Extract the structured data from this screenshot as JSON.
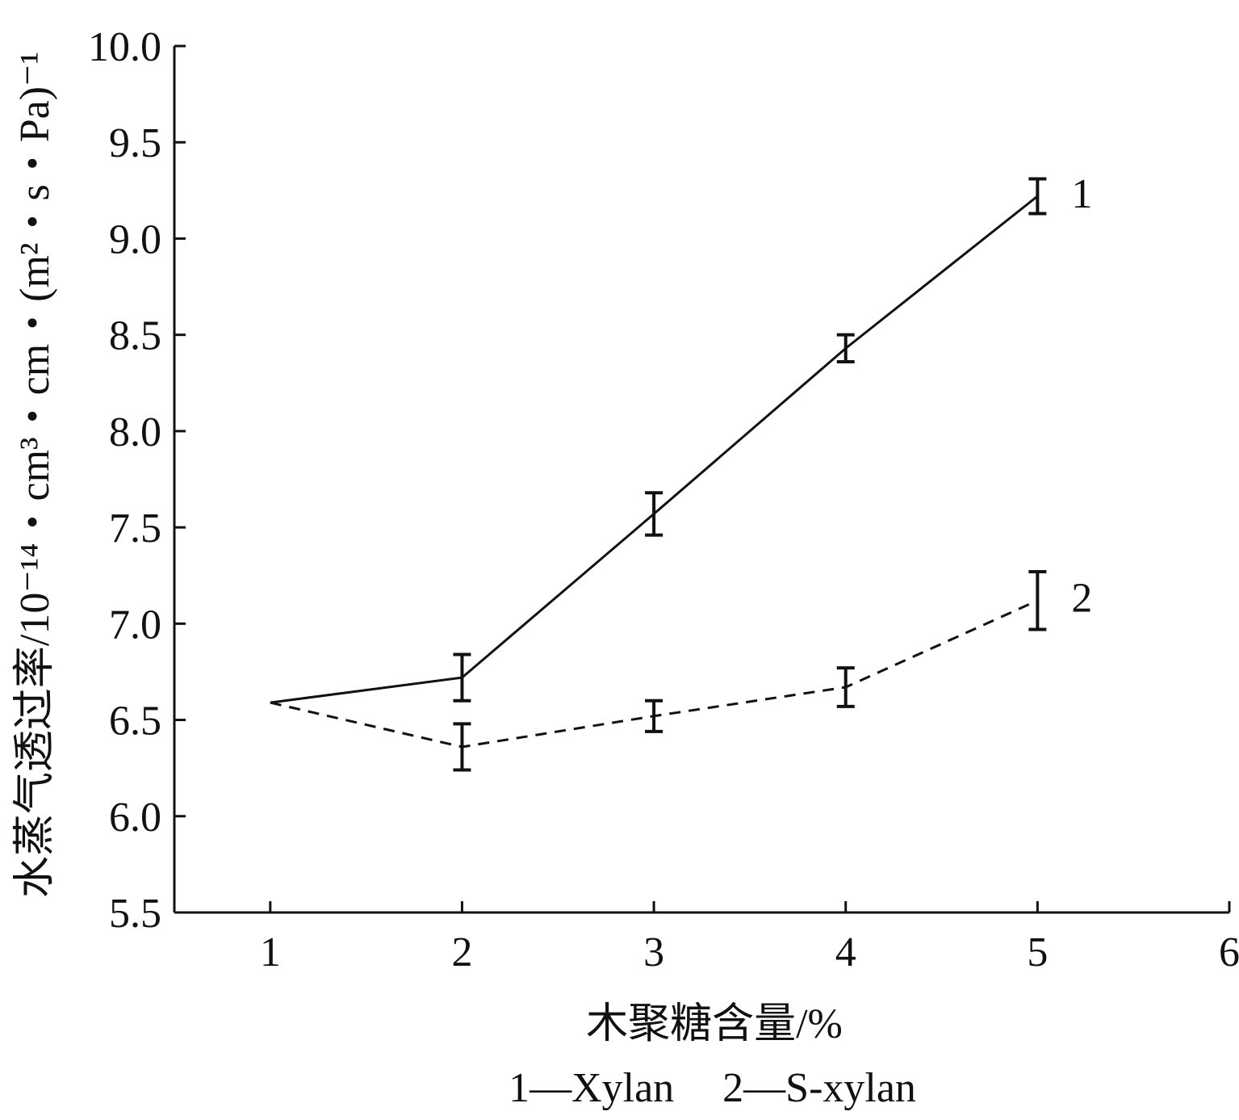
{
  "chart_data": {
    "type": "line",
    "xlabel": "木聚糖含量/%",
    "ylabel": "水蒸气透过率/10⁻¹⁴・cm³・cm・(m²・s・Pa)⁻¹",
    "xlim": [
      0.5,
      6
    ],
    "ylim": [
      5.5,
      10.0
    ],
    "xticks": [
      "1",
      "2",
      "3",
      "4",
      "5",
      "6"
    ],
    "yticks": [
      "5.5",
      "6.0",
      "6.5",
      "7.0",
      "7.5",
      "8.0",
      "8.5",
      "9.0",
      "9.5",
      "10.0"
    ],
    "grid": false,
    "series": [
      {
        "name": "Xylan",
        "end_label": "1",
        "line_style": "solid",
        "x": [
          1,
          2,
          3,
          4,
          5
        ],
        "y": [
          6.59,
          6.72,
          7.57,
          8.43,
          9.22
        ],
        "error": [
          null,
          0.12,
          0.11,
          0.07,
          0.09
        ]
      },
      {
        "name": "S-xylan",
        "end_label": "2",
        "line_style": "dashed",
        "x": [
          1,
          2,
          3,
          4,
          5
        ],
        "y": [
          6.59,
          6.36,
          6.52,
          6.67,
          7.12
        ],
        "error": [
          null,
          0.12,
          0.08,
          0.1,
          0.15
        ]
      }
    ],
    "legend": [
      "1—Xylan",
      "2—S-xylan"
    ]
  }
}
